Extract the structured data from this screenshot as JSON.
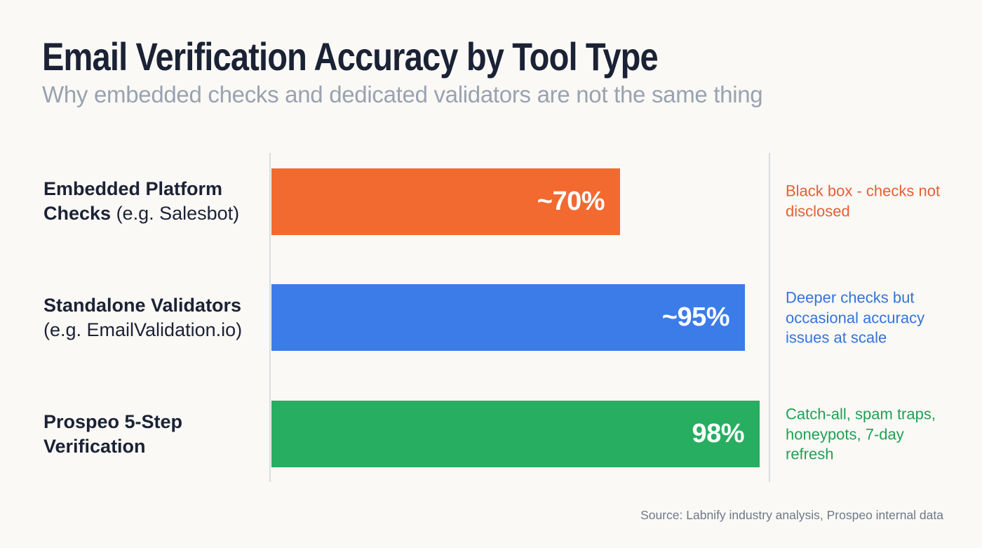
{
  "chart_data": {
    "type": "bar",
    "orientation": "horizontal",
    "title": "Email Verification Accuracy by Tool Type",
    "subtitle": "Why embedded checks and dedicated validators are not the same thing",
    "categories": [
      "Embedded Platform Checks (e.g. Salesbot)",
      "Standalone Validators (e.g. EmailValidation.io)",
      "Prospeo 5-Step Verification"
    ],
    "values": [
      70,
      95,
      98
    ],
    "value_labels": [
      "~70%",
      "~95%",
      "98%"
    ],
    "bar_colors": [
      "#F26A30",
      "#3B7CE8",
      "#27AE60"
    ],
    "annotations": [
      "Black box - checks not disclosed",
      "Deeper checks but occasional accuracy issues at scale",
      "Catch-all, spam traps, honeypots, 7-day refresh"
    ],
    "annotation_colors": [
      "#E65F34",
      "#3473D9",
      "#21A055"
    ],
    "xlim": [
      0,
      100
    ],
    "grid": false,
    "legend": "none"
  },
  "rows": [
    {
      "label_lines": [
        {
          "bold": "Embedded Platform",
          "regular": ""
        },
        {
          "bold": "Checks",
          "regular": " (e.g. Salesbot)"
        }
      ]
    },
    {
      "label_lines": [
        {
          "bold": "Standalone Validators",
          "regular": ""
        },
        {
          "bold": "",
          "regular": "(e.g. EmailValidation.io)"
        }
      ]
    },
    {
      "label_lines": [
        {
          "bold": "Prospeo 5-Step",
          "regular": ""
        },
        {
          "bold": "Verification",
          "regular": ""
        }
      ]
    }
  ],
  "footer": {
    "source": "Source: Labnify industry analysis, Prospeo internal data"
  }
}
